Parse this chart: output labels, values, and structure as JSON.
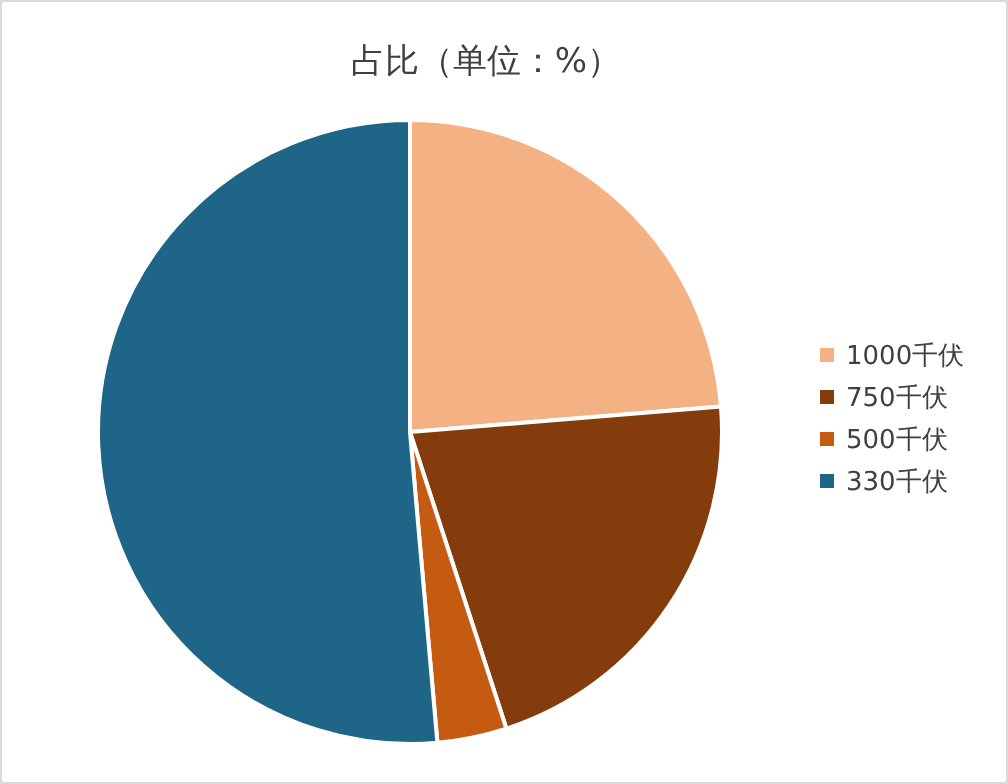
{
  "chart_data": {
    "type": "pie",
    "title": "占比（单位：%）",
    "categories": [
      "1000千伏",
      "750千伏",
      "500千伏",
      "330千伏"
    ],
    "values": [
      23.7,
      21.3,
      3.6,
      51.4
    ],
    "colors": [
      "#f4b183",
      "#843c0c",
      "#c55a11",
      "#1f6587"
    ],
    "legend": "right"
  }
}
